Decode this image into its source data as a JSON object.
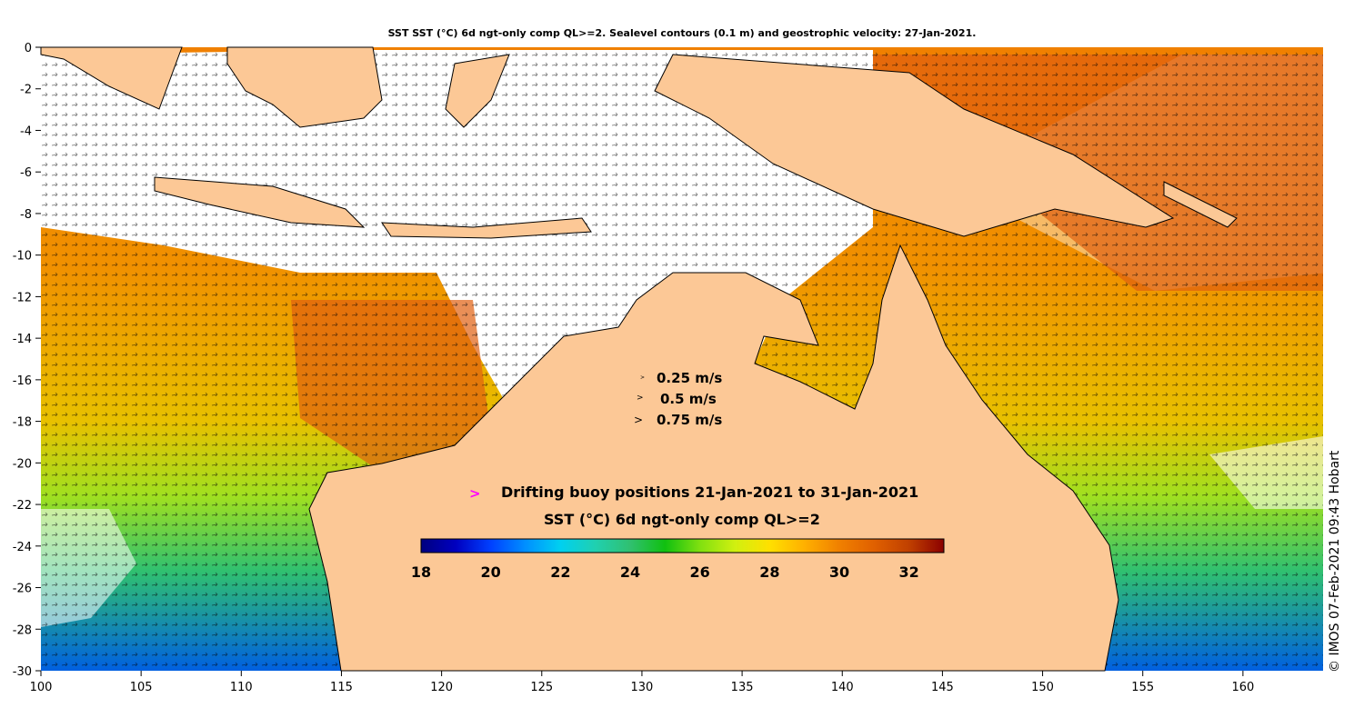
{
  "title": "SST SST (°C) 6d ngt-only comp QL>=2. Sealevel contours (0.1 m) and geostrophic velocity: 27-Jan-2021.",
  "copyright": "© IMOS 07-Feb-2021 09:43 Hobart",
  "velocity_legend": [
    {
      "label": "0.25 m/s",
      "icon": "small-arrow"
    },
    {
      "label": "0.5 m/s",
      "icon": "medium-arrow"
    },
    {
      "label": "0.75 m/s",
      "icon": "large-arrow"
    }
  ],
  "buoy": {
    "label": "Drifting buoy positions 21-Jan-2021 to 31-Jan-2021",
    "marker": ">",
    "color": "#ff00ff"
  },
  "colorbar": {
    "title": "SST (°C) 6d ngt-only comp QL>=2",
    "range": [
      18,
      33
    ],
    "ticks": [
      "18",
      "20",
      "22",
      "24",
      "26",
      "28",
      "30",
      "32"
    ],
    "colors": [
      "#00007f",
      "#0000c0",
      "#0040ff",
      "#0090ff",
      "#00d0f0",
      "#20d0b0",
      "#30c070",
      "#10c010",
      "#80e010",
      "#d0f010",
      "#ffe000",
      "#ffb000",
      "#f08000",
      "#e06000",
      "#c04000",
      "#8b0000"
    ]
  },
  "axes": {
    "x_ticks": [
      "100",
      "105",
      "110",
      "115",
      "120",
      "125",
      "130",
      "135",
      "140",
      "145",
      "150",
      "155",
      "160"
    ],
    "y_ticks": [
      "0",
      "-2",
      "-4",
      "-6",
      "-8",
      "-10",
      "-12",
      "-14",
      "-16",
      "-18",
      "-20",
      "-22",
      "-24",
      "-26",
      "-28",
      "-30"
    ],
    "lon_range": [
      100,
      164
    ],
    "lat_range": [
      -30,
      0
    ]
  },
  "colors": {
    "land": "#fcc896",
    "no_data": "#ffffff"
  }
}
